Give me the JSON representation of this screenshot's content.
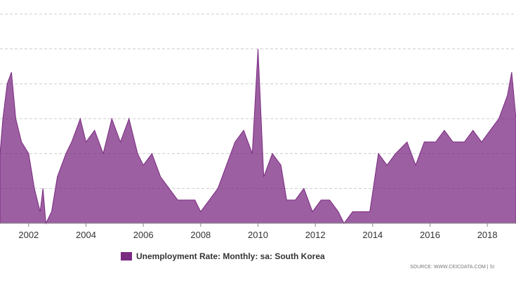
{
  "chart_data": {
    "type": "area",
    "title": "",
    "xlabel": "",
    "ylabel": "",
    "series": [
      {
        "name": "Unemployment Rate: Monthly: sa: South Korea",
        "points": [
          [
            2001.0,
            3.6
          ],
          [
            2001.1,
            3.9
          ],
          [
            2001.25,
            4.2
          ],
          [
            2001.4,
            4.3
          ],
          [
            2001.55,
            3.9
          ],
          [
            2001.75,
            3.7
          ],
          [
            2002.0,
            3.6
          ],
          [
            2002.2,
            3.3
          ],
          [
            2002.4,
            3.1
          ],
          [
            2002.5,
            3.3
          ],
          [
            2002.6,
            3.0
          ],
          [
            2002.8,
            3.1
          ],
          [
            2003.0,
            3.4
          ],
          [
            2003.3,
            3.6
          ],
          [
            2003.5,
            3.7
          ],
          [
            2003.8,
            3.9
          ],
          [
            2004.0,
            3.7
          ],
          [
            2004.3,
            3.8
          ],
          [
            2004.6,
            3.6
          ],
          [
            2004.9,
            3.9
          ],
          [
            2005.2,
            3.7
          ],
          [
            2005.5,
            3.9
          ],
          [
            2005.8,
            3.6
          ],
          [
            2006.0,
            3.5
          ],
          [
            2006.3,
            3.6
          ],
          [
            2006.6,
            3.4
          ],
          [
            2006.9,
            3.3
          ],
          [
            2007.2,
            3.2
          ],
          [
            2007.5,
            3.2
          ],
          [
            2007.8,
            3.2
          ],
          [
            2008.0,
            3.1
          ],
          [
            2008.3,
            3.2
          ],
          [
            2008.6,
            3.3
          ],
          [
            2008.9,
            3.5
          ],
          [
            2009.2,
            3.7
          ],
          [
            2009.5,
            3.8
          ],
          [
            2009.8,
            3.6
          ],
          [
            2010.0,
            4.5
          ],
          [
            2010.2,
            3.4
          ],
          [
            2010.5,
            3.6
          ],
          [
            2010.8,
            3.5
          ],
          [
            2011.0,
            3.2
          ],
          [
            2011.3,
            3.2
          ],
          [
            2011.6,
            3.3
          ],
          [
            2011.9,
            3.1
          ],
          [
            2012.2,
            3.2
          ],
          [
            2012.5,
            3.2
          ],
          [
            2012.8,
            3.1
          ],
          [
            2013.0,
            3.0
          ],
          [
            2013.3,
            3.1
          ],
          [
            2013.6,
            3.1
          ],
          [
            2013.9,
            3.1
          ],
          [
            2014.2,
            3.6
          ],
          [
            2014.5,
            3.5
          ],
          [
            2014.8,
            3.6
          ],
          [
            2015.2,
            3.7
          ],
          [
            2015.5,
            3.5
          ],
          [
            2015.8,
            3.7
          ],
          [
            2016.2,
            3.7
          ],
          [
            2016.5,
            3.8
          ],
          [
            2016.8,
            3.7
          ],
          [
            2017.2,
            3.7
          ],
          [
            2017.5,
            3.8
          ],
          [
            2017.8,
            3.7
          ],
          [
            2018.1,
            3.8
          ],
          [
            2018.4,
            3.9
          ],
          [
            2018.7,
            4.1
          ],
          [
            2018.85,
            4.3
          ],
          [
            2019.0,
            3.9
          ]
        ]
      }
    ],
    "xticks": [
      "2002",
      "2004",
      "2006",
      "2008",
      "2010",
      "2012",
      "2014",
      "2016",
      "2018"
    ],
    "xlim": [
      2001.0,
      2019.0
    ],
    "ylim": [
      3.0,
      4.8
    ],
    "grid": "horizontal dashed",
    "legend_position": "bottom",
    "colors": {
      "area": "#7b2a82",
      "fill_opacity": 0.75,
      "grid": "#cccccc",
      "axis": "#888888"
    }
  },
  "legend": {
    "label": "Unemployment Rate: Monthly: sa: South Korea"
  },
  "source": "SOURCE: WWW.CEICDATA.COM | SI"
}
